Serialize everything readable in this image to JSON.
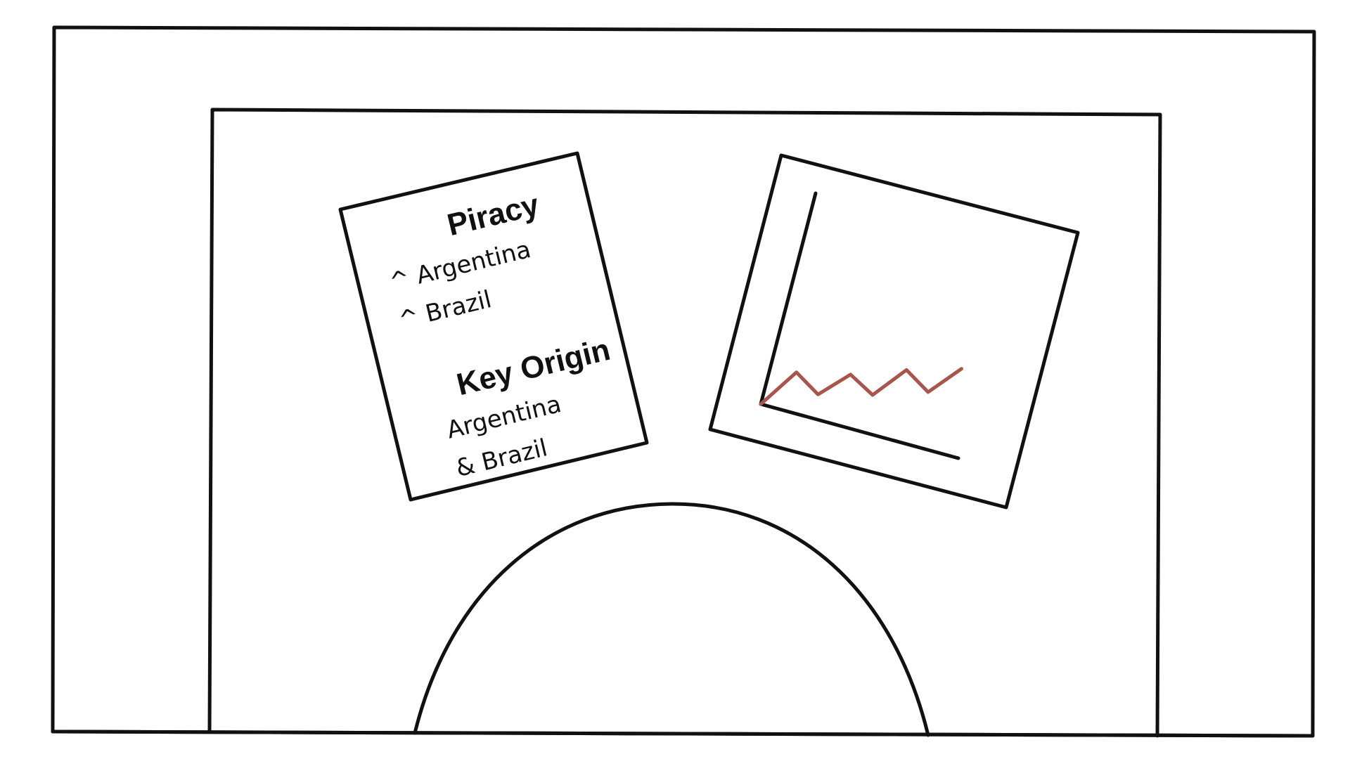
{
  "note": {
    "heading1": "Piracy",
    "line1": "^ Argentina",
    "line2": "^ Brazil",
    "heading2": "Key Origin",
    "line3": "Argentina",
    "line4": "& Brazil"
  },
  "chart_data": {
    "type": "line",
    "title": "",
    "xlabel": "",
    "ylabel": "",
    "series": [
      {
        "values": [
          0,
          2.3,
          1.4,
          3.0,
          2.2,
          4.1,
          3.2,
          5.0
        ]
      }
    ],
    "line_color": "#A8554B",
    "grid": false,
    "legend": "none",
    "axis_labels_shown": false
  },
  "colors": {
    "stroke": "#111111",
    "trend_line": "#A8554B",
    "background": "#FFFFFF"
  }
}
